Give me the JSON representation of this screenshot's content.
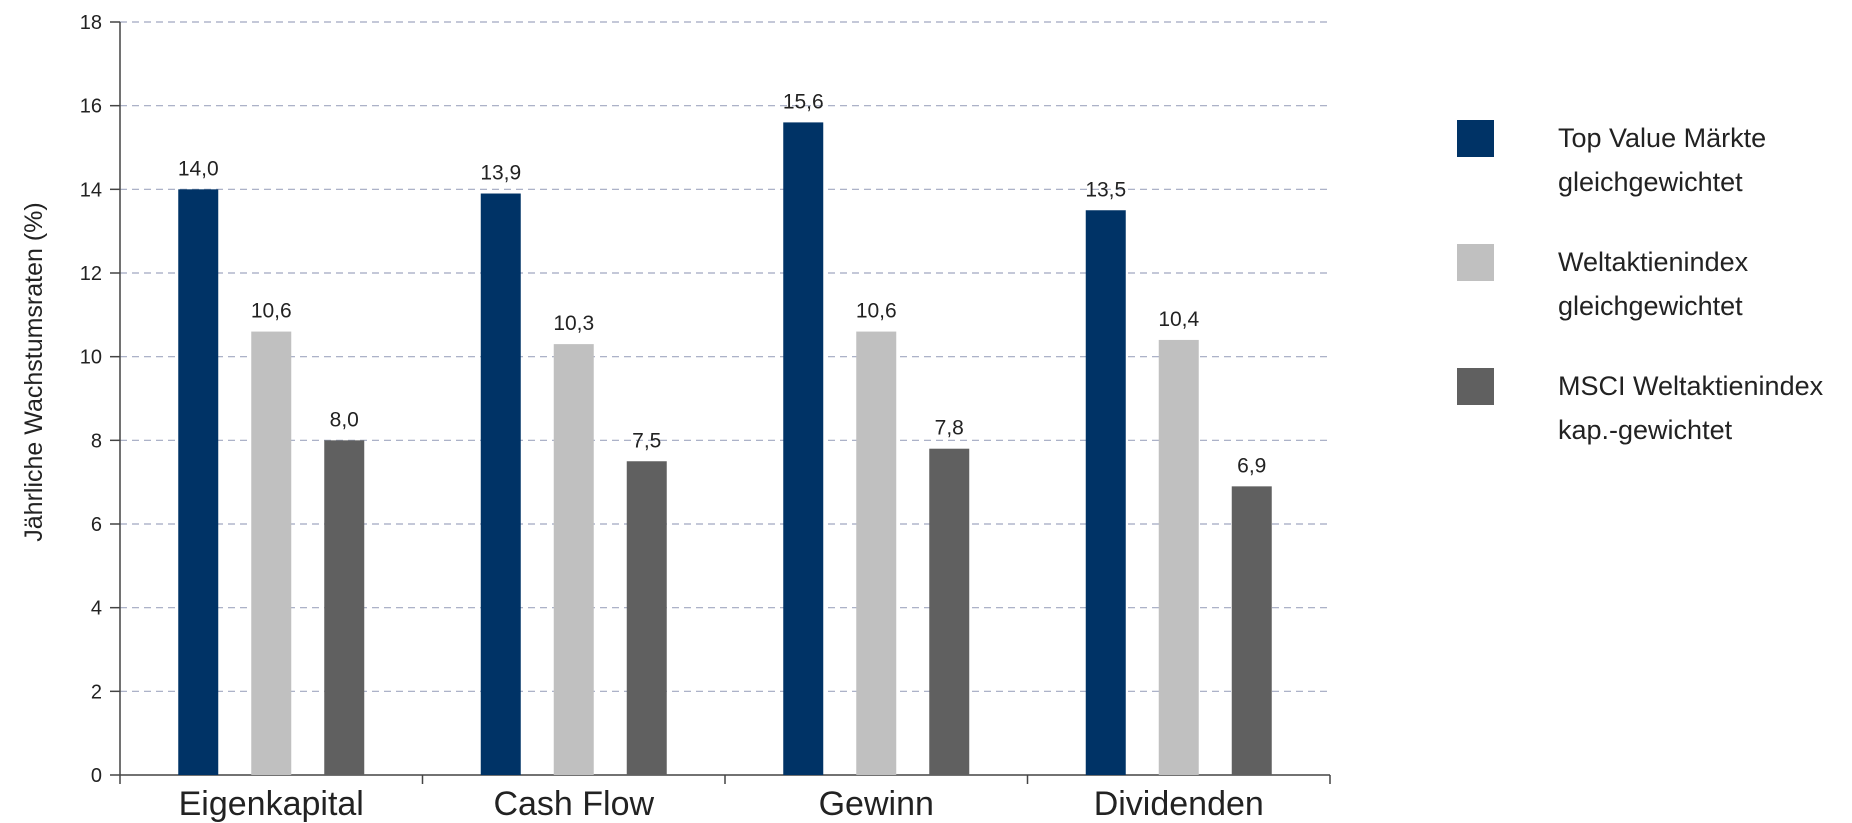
{
  "chart_data": {
    "type": "bar",
    "categories": [
      "Eigenkapital",
      "Cash Flow",
      "Gewinn",
      "Dividenden"
    ],
    "series": [
      {
        "name": [
          "Top Value Märkte",
          "gleichgewichtet"
        ],
        "color": "#003366",
        "values": [
          14.0,
          13.9,
          15.6,
          13.5
        ],
        "labels": [
          "14,0",
          "13,9",
          "15,6",
          "13,5"
        ]
      },
      {
        "name": [
          "Weltaktienindex",
          "gleichgewichtet"
        ],
        "color": "#c0c0c0",
        "values": [
          10.6,
          10.3,
          10.6,
          10.4
        ],
        "labels": [
          "10,6",
          "10,3",
          "10,6",
          "10,4"
        ]
      },
      {
        "name": [
          "MSCI Weltaktienindex",
          "kap.-gewichtet"
        ],
        "color": "#606060",
        "values": [
          8.0,
          7.5,
          7.8,
          6.9
        ],
        "labels": [
          "8,0",
          "7,5",
          "7,8",
          "6,9"
        ]
      }
    ],
    "title": "",
    "xlabel": "",
    "ylabel": "Jährliche Wachstumsraten (%)",
    "ylim": [
      0,
      18
    ],
    "yticks": [
      0,
      2,
      4,
      6,
      8,
      10,
      12,
      14,
      16,
      18
    ],
    "grid": true,
    "gridColor": "#a0a8c0",
    "legend": "right"
  }
}
